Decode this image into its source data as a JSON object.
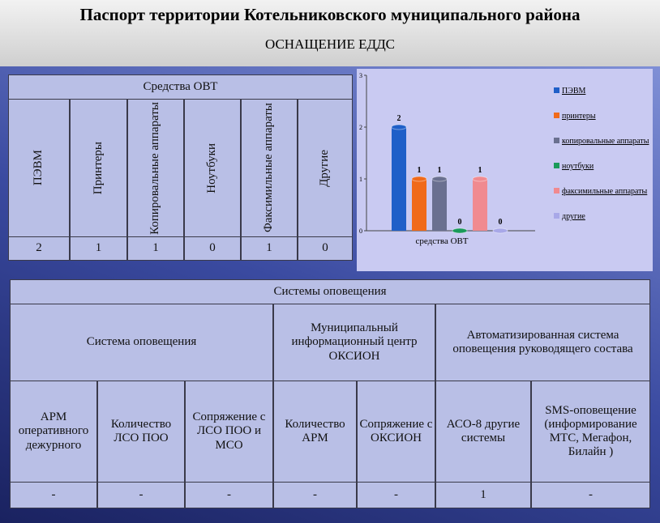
{
  "header": {
    "title": "Паспорт территории Котельниковского муниципального района",
    "subtitle": "ОСНАЩЕНИЕ ЕДДС"
  },
  "ovt_table": {
    "title": "Средства ОВТ",
    "columns": [
      "ПЭВМ",
      "Принтеры",
      "Копировальные аппараты",
      "Ноутбуки",
      "Факсимильные аппараты",
      "Другие"
    ],
    "values": [
      2,
      1,
      1,
      0,
      1,
      0
    ]
  },
  "chart_data": {
    "type": "bar",
    "categories": [
      "средства ОВТ"
    ],
    "series": [
      {
        "name": "ПЭВМ",
        "color": "#1f5fc8",
        "values": [
          2
        ]
      },
      {
        "name": "принтеры",
        "color": "#f06a1a",
        "values": [
          1
        ]
      },
      {
        "name": "копировальные аппараты",
        "color": "#6a7090",
        "values": [
          1
        ]
      },
      {
        "name": "ноутбуки",
        "color": "#1a9a5a",
        "values": [
          0
        ]
      },
      {
        "name": "факсимильные аппараты",
        "color": "#f08a90",
        "values": [
          1
        ]
      },
      {
        "name": "другие",
        "color": "#a8a8e8",
        "values": [
          0
        ]
      }
    ],
    "ylim": [
      0,
      3
    ],
    "yticks": [
      0,
      1,
      2,
      3
    ]
  },
  "alert_table": {
    "title": "Системы оповещения",
    "groups": [
      "Система оповещения",
      "Муниципальный информационный центр ОКСИОН",
      "Автоматизированная система оповещения руководящего состава"
    ],
    "columns": [
      "АРМ оперативного дежурного",
      "Количество ЛСО ПОО",
      "Сопряжение с ЛСО ПОО и МСО",
      "Количество АРМ",
      "Сопряжение с ОКСИОН",
      "АСО-8 другие системы",
      "SMS-оповещение (информирование МТС, Мегафон, Билайн )"
    ],
    "values": [
      "-",
      "-",
      "-",
      "-",
      "-",
      "1",
      "-"
    ]
  }
}
